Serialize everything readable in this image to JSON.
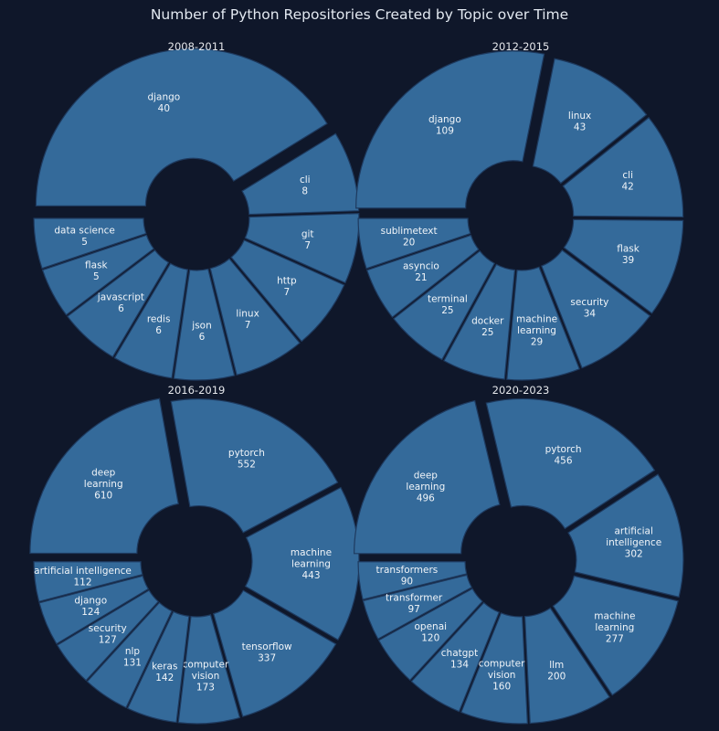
{
  "page": {
    "title": "Number of Python Repositories Created by Topic over Time"
  },
  "colors": {
    "background": "#0f172a",
    "slice_fill": "#346a9a",
    "slice_stroke": "#1e3a5f",
    "text": "#f1f5f9"
  },
  "chart_data": [
    {
      "type": "pie",
      "title": "2008-2011",
      "donut": true,
      "exploded": true,
      "categories": [
        "django",
        "cli",
        "git",
        "http",
        "linux",
        "json",
        "redis",
        "javascript",
        "flask",
        "data science"
      ],
      "labels": [
        "django",
        "cli",
        "git",
        "http",
        "linux",
        "json",
        "redis",
        "javascript",
        "flask",
        "data science"
      ],
      "values": [
        40,
        8,
        7,
        7,
        7,
        6,
        6,
        6,
        5,
        5
      ]
    },
    {
      "type": "pie",
      "title": "2012-2015",
      "donut": true,
      "exploded": true,
      "categories": [
        "django",
        "linux",
        "cli",
        "flask",
        "security",
        "machine learning",
        "docker",
        "terminal",
        "asyncio",
        "sublimetext"
      ],
      "labels": [
        "django",
        "linux",
        "cli",
        "flask",
        "security",
        "machine\nlearning",
        "docker",
        "terminal",
        "asyncio",
        "sublimetext"
      ],
      "values": [
        109,
        43,
        42,
        39,
        34,
        29,
        25,
        25,
        21,
        20
      ]
    },
    {
      "type": "pie",
      "title": "2016-2019",
      "donut": true,
      "exploded": true,
      "categories": [
        "deep learning",
        "pytorch",
        "machine learning",
        "tensorflow",
        "computer vision",
        "keras",
        "nlp",
        "security",
        "django",
        "artificial intelligence"
      ],
      "labels": [
        "deep\nlearning",
        "pytorch",
        "machine\nlearning",
        "tensorflow",
        "computer\nvision",
        "keras",
        "nlp",
        "security",
        "django",
        "artificial intelligence"
      ],
      "values": [
        610,
        552,
        443,
        337,
        173,
        142,
        131,
        127,
        124,
        112
      ]
    },
    {
      "type": "pie",
      "title": "2020-2023",
      "donut": true,
      "exploded": true,
      "categories": [
        "deep learning",
        "pytorch",
        "artificial intelligence",
        "machine learning",
        "llm",
        "computer vision",
        "chatgpt",
        "openai",
        "transformer",
        "transformers"
      ],
      "labels": [
        "deep\nlearning",
        "pytorch",
        "artificial\nintelligence",
        "machine\nlearning",
        "llm",
        "computer\nvision",
        "chatgpt",
        "openai",
        "transformer",
        "transformers"
      ],
      "values": [
        496,
        456,
        302,
        277,
        200,
        160,
        134,
        120,
        97,
        90
      ]
    }
  ]
}
